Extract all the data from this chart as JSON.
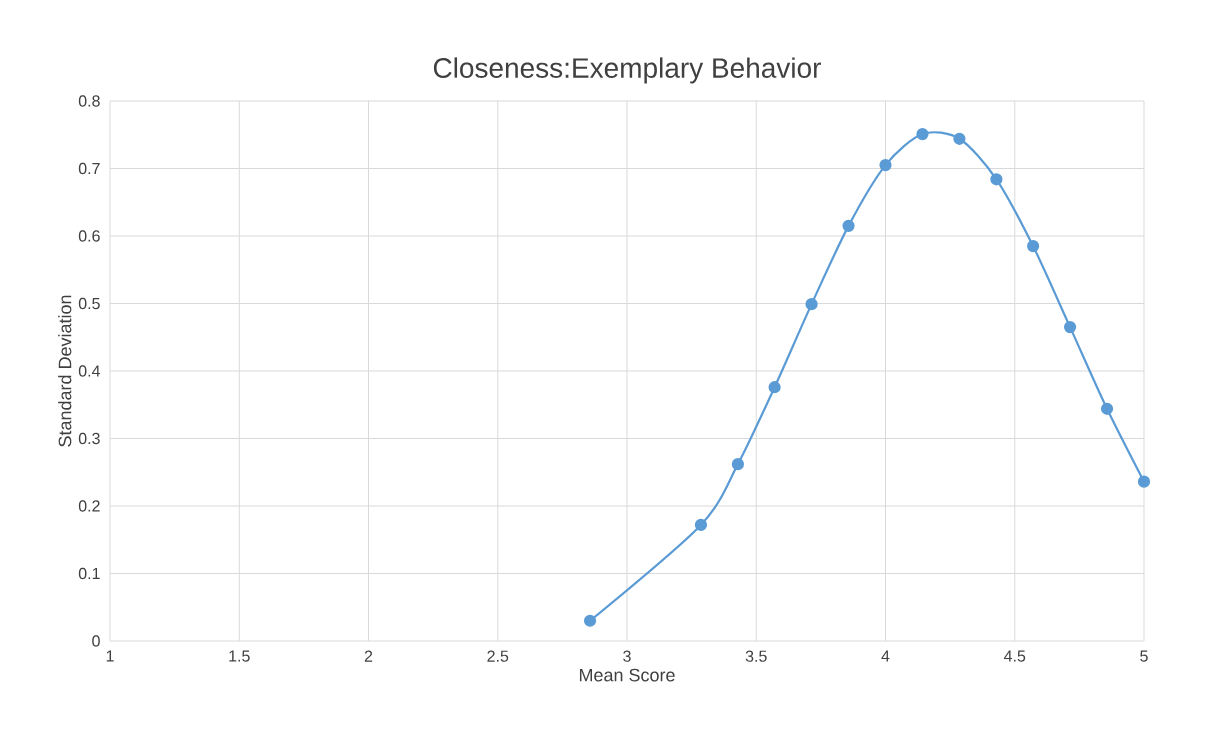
{
  "chart_data": {
    "type": "line",
    "title": "Closeness:Exemplary Behavior",
    "xlabel": "Mean Score",
    "ylabel": "Standard Deviation",
    "x": [
      2.857,
      3.286,
      3.429,
      3.571,
      3.714,
      3.857,
      4.0,
      4.143,
      4.286,
      4.429,
      4.571,
      4.714,
      4.857,
      5.0
    ],
    "series": [
      {
        "color": "#5b9bd5",
        "values": [
          0.03,
          0.172,
          0.262,
          0.376,
          0.499,
          0.615,
          0.705,
          0.751,
          0.744,
          0.684,
          0.585,
          0.465,
          0.344,
          0.236
        ]
      }
    ],
    "xlim": [
      1,
      5
    ],
    "xticks": [
      1,
      1.5,
      2,
      2.5,
      3,
      3.5,
      4,
      4.5,
      5
    ],
    "ylim": [
      0,
      0.8
    ],
    "yticks": [
      0,
      0.1,
      0.2,
      0.3,
      0.4,
      0.5,
      0.6,
      0.7,
      0.8
    ],
    "grid": true,
    "marker": "circle",
    "line_style": "solid"
  }
}
